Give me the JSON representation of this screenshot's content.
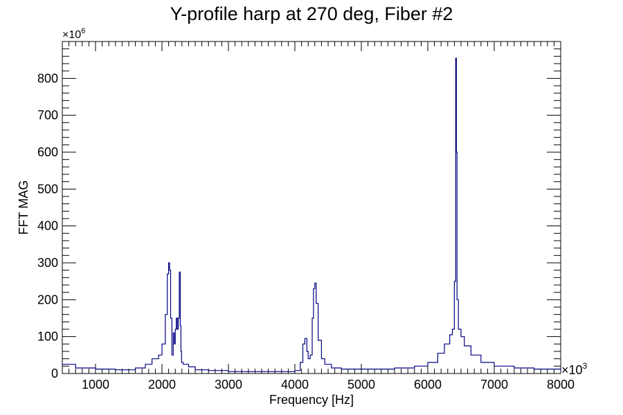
{
  "chart_data": {
    "type": "line",
    "title": "Y-profile harp at 270 deg, Fiber #2",
    "xlabel": "Frequency [Hz]",
    "ylabel": "FFT MAG",
    "x_multiplier": "×10",
    "x_multiplier_exp": "3",
    "y_multiplier": "×10",
    "y_multiplier_exp": "6",
    "xlim": [
      500,
      8000
    ],
    "ylim": [
      0,
      900
    ],
    "x_ticks": [
      1000,
      2000,
      3000,
      4000,
      5000,
      6000,
      7000,
      8000
    ],
    "y_ticks": [
      0,
      100,
      200,
      300,
      400,
      500,
      600,
      700,
      800
    ],
    "grid": false,
    "line_color": "#000080",
    "series": [
      {
        "x": [
          500,
          700,
          1000,
          1300,
          1600,
          1750,
          1850,
          1950,
          2000,
          2050,
          2080,
          2100,
          2115,
          2130,
          2150,
          2170,
          2185,
          2200,
          2215,
          2230,
          2245,
          2260,
          2275,
          2285,
          2295,
          2320,
          2400,
          2500,
          2700,
          3000,
          3500,
          3800,
          4000,
          4080,
          4120,
          4150,
          4180,
          4200,
          4230,
          4260,
          4280,
          4300,
          4320,
          4350,
          4400,
          4450,
          4550,
          4700,
          5000,
          5500,
          5800,
          6000,
          6150,
          6250,
          6330,
          6370,
          6400,
          6420,
          6430,
          6440,
          6460,
          6500,
          6550,
          6650,
          6800,
          7000,
          7300,
          7600,
          8000
        ],
        "y": [
          25,
          15,
          12,
          10,
          15,
          25,
          40,
          50,
          80,
          160,
          270,
          300,
          280,
          150,
          50,
          110,
          80,
          120,
          150,
          120,
          150,
          275,
          130,
          60,
          30,
          25,
          18,
          10,
          8,
          5,
          5,
          5,
          8,
          30,
          80,
          95,
          60,
          40,
          50,
          150,
          230,
          245,
          190,
          90,
          40,
          25,
          15,
          12,
          12,
          15,
          20,
          30,
          55,
          80,
          105,
          120,
          250,
          855,
          600,
          200,
          120,
          100,
          75,
          50,
          30,
          20,
          15,
          12,
          10
        ]
      }
    ]
  }
}
